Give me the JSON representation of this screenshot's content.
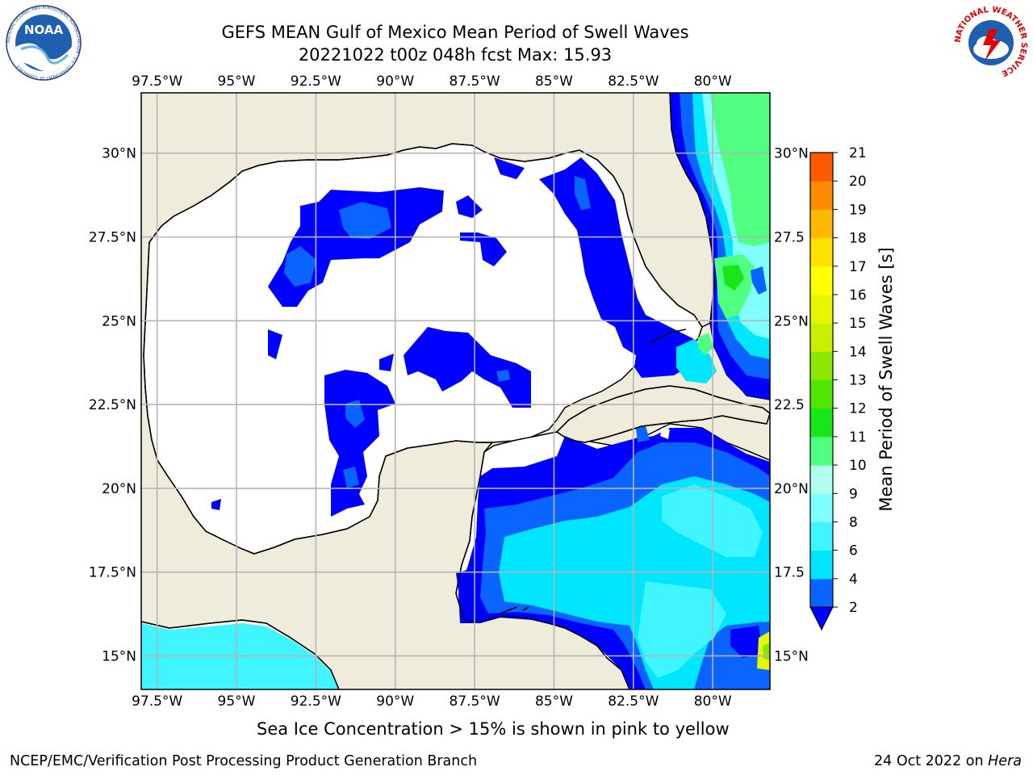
{
  "header": {
    "title_line1": "GEFS MEAN Gulf of Mexico Mean Period of Swell Waves",
    "title_line2": "20221022 t00z 048h fcst   Max: 15.93"
  },
  "logos": {
    "left": {
      "text": "NOAA",
      "ring_text": "NATIONAL OCEANIC AND ATMOSPHERIC ADMINISTRATION · U.S. DEPARTMENT OF COMMERCE"
    },
    "right": {
      "ring_text": "NATIONAL WEATHER SERVICE"
    }
  },
  "map": {
    "lon_labels": [
      "97.5°W",
      "95°W",
      "92.5°W",
      "90°W",
      "87.5°W",
      "85°W",
      "82.5°W",
      "80°W"
    ],
    "lon_values": [
      -97.5,
      -95,
      -92.5,
      -90,
      -87.5,
      -85,
      -82.5,
      -80
    ],
    "lat_labels_left": [
      "30°N",
      "27.5°N",
      "25°N",
      "22.5°N",
      "20°N",
      "17.5°N",
      "15°N"
    ],
    "lat_labels_right": [
      "30°N",
      "27.5",
      "25°N",
      "22.5",
      "20°N",
      "17.5",
      "15°N"
    ],
    "lat_values": [
      30,
      27.5,
      25,
      22.5,
      20,
      17.5,
      15
    ],
    "extent": {
      "lon_min": -98.0,
      "lon_max": -78.2,
      "lat_min": 14.0,
      "lat_max": 31.8
    },
    "colors": {
      "land": "#efecdc",
      "ocean": "#ffffff",
      "grid": "#b4b4b4",
      "coast": "#000000"
    }
  },
  "colorbar": {
    "label": "Mean Period of Swell Waves [s]",
    "tick_labels": [
      "2",
      "4",
      "6",
      "8",
      "9",
      "10",
      "11",
      "12",
      "13",
      "14",
      "15",
      "16",
      "17",
      "18",
      "19",
      "20",
      "21"
    ],
    "colors": [
      "#0a64ff",
      "#00e6ff",
      "#40f5ff",
      "#80ffff",
      "#b0fff0",
      "#50ff80",
      "#19e619",
      "#50e600",
      "#8ce600",
      "#c8f000",
      "#e6f500",
      "#ffff00",
      "#ffe100",
      "#ffb900",
      "#ff8c00",
      "#ff5a00",
      "#ff2d00"
    ],
    "extend_color": "#0000ff"
  },
  "caption": "Sea Ice Concentration > 15% is shown in pink to yellow",
  "footer": {
    "left": "NCEP/EMC/Verification Post Processing Product Generation Branch",
    "date": "24 Oct 2022 on ",
    "machine": "Hera"
  }
}
